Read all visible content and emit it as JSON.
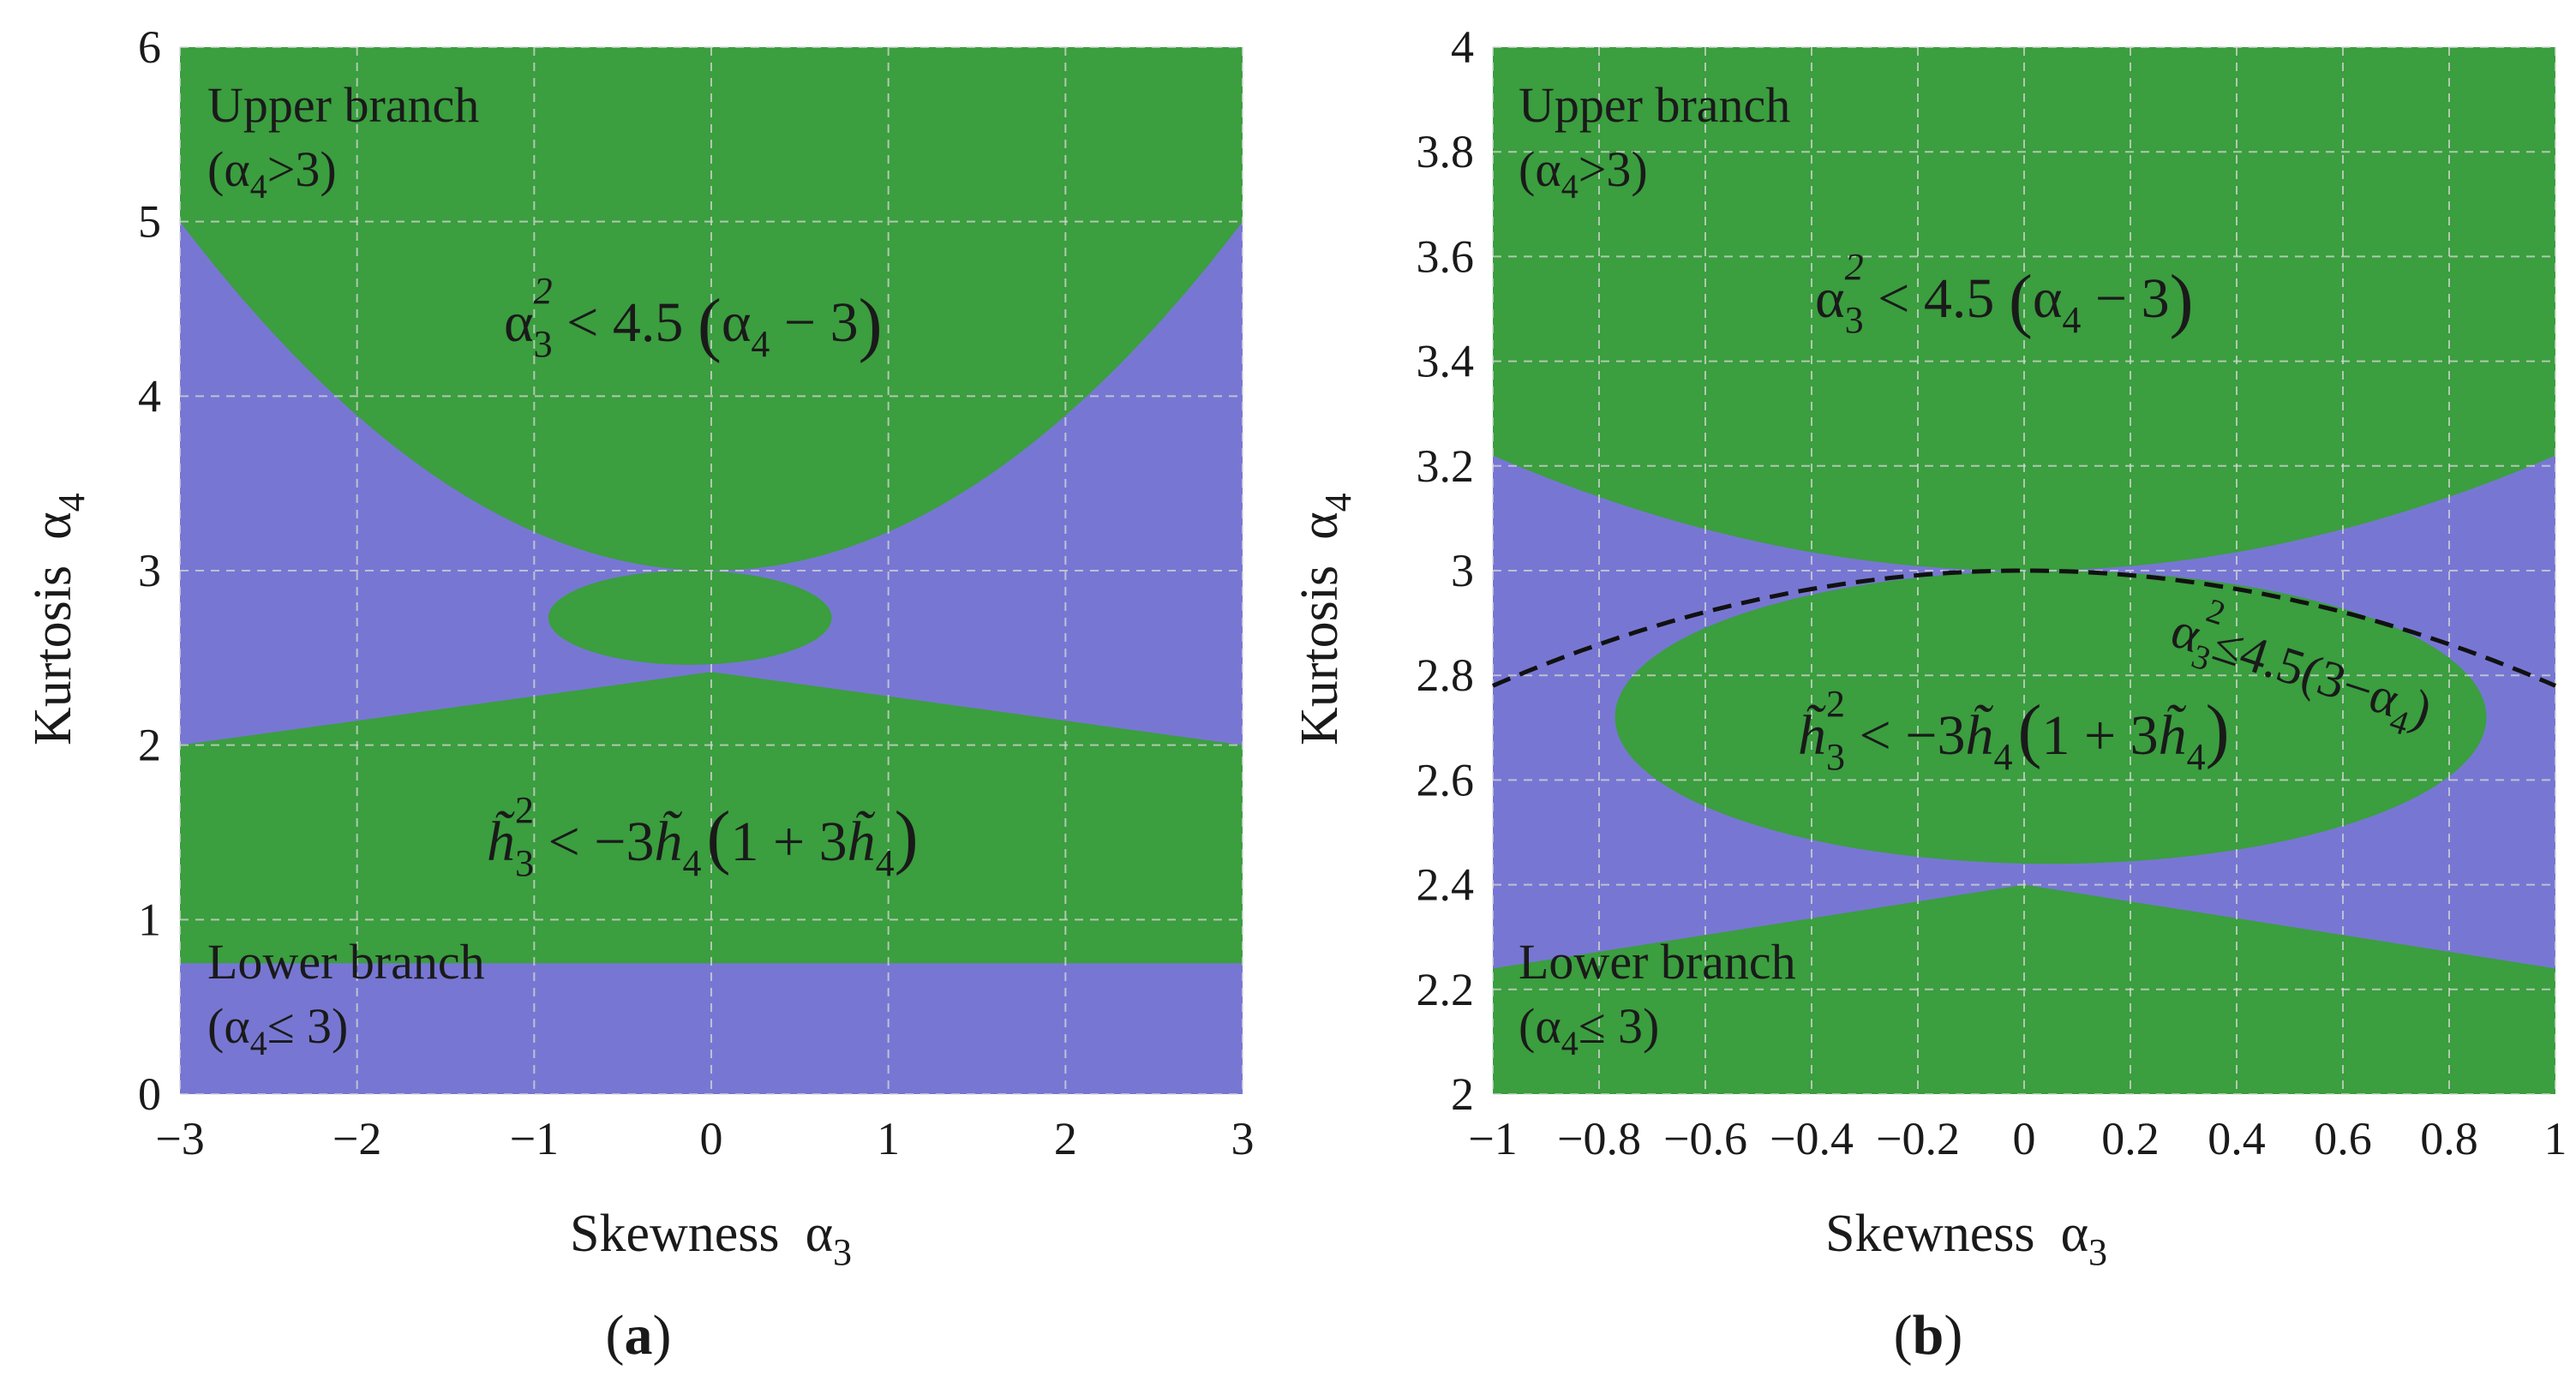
{
  "colors": {
    "green": "#3b9e3f",
    "purple": "#7777d3",
    "curve": "#111111"
  },
  "chart_data": [
    {
      "type": "area",
      "panel": "a",
      "caption_letter": "a",
      "xlabel": "Skewness",
      "ylabel": "Kurtosis",
      "xlabel_symbol": "α",
      "xlabel_sub": "3",
      "ylabel_symbol": "α",
      "ylabel_sub": "4",
      "xlim": [
        -3,
        3
      ],
      "ylim": [
        0,
        6
      ],
      "xticks": [
        -3,
        -2,
        -1,
        0,
        1,
        2,
        3
      ],
      "xtick_labels": [
        "−3",
        "−2",
        "−1",
        "0",
        "1",
        "2",
        "3"
      ],
      "yticks": [
        0,
        1,
        2,
        3,
        4,
        5,
        6
      ],
      "ytick_labels": [
        "0",
        "1",
        "2",
        "3",
        "4",
        "5",
        "6"
      ],
      "regions": [
        {
          "name": "upper branch valid region",
          "inequality": "α3² < 4.5 (α4 − 3)",
          "color": "green"
        },
        {
          "name": "lower branch valid region",
          "inequality": "h3² < −3h4 (1 + 3h4)",
          "color": "green"
        },
        {
          "name": "invalid region",
          "color": "purple"
        }
      ],
      "boundaries": {
        "upper_parabola": {
          "a4_at_0": 3,
          "a4_at_abs3": 5
        },
        "lower_band": {
          "bottom_a4": 0.75,
          "edge_top_a4": 2.0,
          "cusp_a4": 2.42
        },
        "lens": {
          "center_a3": -0.12,
          "center_a4": 2.73,
          "half_width_a3": 0.8,
          "half_height_a4": 0.27
        }
      },
      "annotations": {
        "upper_branch": "Upper branch",
        "upper_branch_cond": "(α4>3)",
        "lower_branch": "Lower branch",
        "lower_branch_cond": "(α4≤ 3)",
        "upper_ineq": "α3² < 4.5 (α4 − 3)",
        "lower_ineq": "h3² < −3h4 (1 + 3h4)"
      }
    },
    {
      "type": "area",
      "panel": "b",
      "caption_letter": "b",
      "xlabel": "Skewness",
      "ylabel": "Kurtosis",
      "xlabel_symbol": "α",
      "xlabel_sub": "3",
      "ylabel_symbol": "α",
      "ylabel_sub": "4",
      "xlim": [
        -1,
        1
      ],
      "ylim": [
        2,
        4
      ],
      "xticks": [
        -1,
        -0.8,
        -0.6,
        -0.4,
        -0.2,
        0,
        0.2,
        0.4,
        0.6,
        0.8,
        1
      ],
      "xtick_labels": [
        "−1",
        "−0.8",
        "−0.6",
        "−0.4",
        "−0.2",
        "0",
        "0.2",
        "0.4",
        "0.6",
        "0.8",
        "1"
      ],
      "yticks": [
        2,
        2.2,
        2.4,
        2.6,
        2.8,
        3,
        3.2,
        3.4,
        3.6,
        3.8,
        4
      ],
      "ytick_labels": [
        "2",
        "2.2",
        "2.4",
        "2.6",
        "2.8",
        "3",
        "3.2",
        "3.4",
        "3.6",
        "3.8",
        "4"
      ],
      "regions": [
        {
          "name": "upper branch valid region",
          "inequality": "α3² < 4.5 (α4 − 3)",
          "color": "green"
        },
        {
          "name": "lower branch valid region",
          "inequality": "h3² < −3h4 (1 + 3h4)",
          "color": "green"
        },
        {
          "name": "invalid region",
          "color": "purple"
        }
      ],
      "boundaries": {
        "upper_parabola": {
          "a4_at_0": 3,
          "a4_at_abs1": 3.22
        },
        "lower_region_edge": {
          "a4_at_abs1": 2.24,
          "cusp_a4": 2.4
        },
        "lens": {
          "center_a3": 0.05,
          "center_a4": 2.72,
          "half_width_a3": 0.82,
          "half_height_a4": 0.28
        },
        "dashed_curve": {
          "equation": "α4 = 3 − α3²/4.5",
          "a4_at_0": 3,
          "a4_at_abs1": 2.78
        }
      },
      "annotations": {
        "upper_branch": "Upper branch",
        "upper_branch_cond": "(α4>3)",
        "lower_branch": "Lower branch",
        "lower_branch_cond": "(α4≤ 3)",
        "upper_ineq": "α3² < 4.5 (α4 − 3)",
        "lower_ineq": "h3² < −3h4 (1 + 3h4)",
        "dashed_ineq": "α3² ≤ 4.5(3 − α4)"
      }
    }
  ]
}
